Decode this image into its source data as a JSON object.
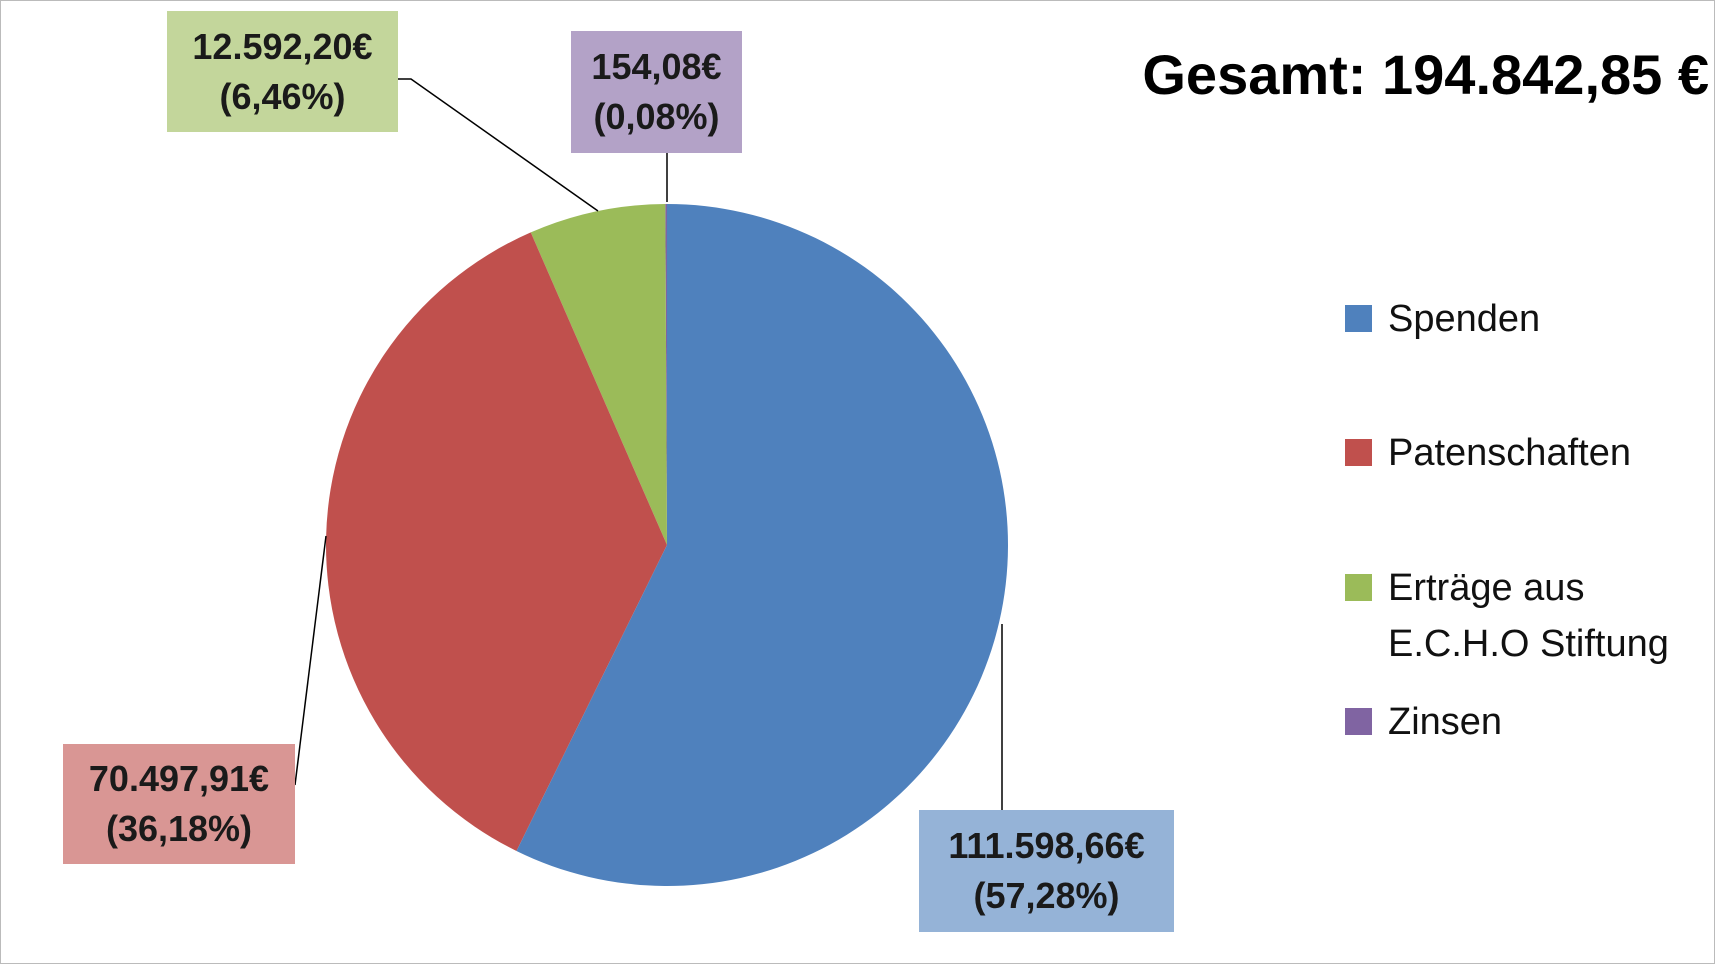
{
  "chart_data": {
    "type": "pie",
    "title": "Gesamt: 194.842,85 €",
    "categories": [
      "Spenden",
      "Patenschaften",
      "Erträge aus E.C.H.O Stiftung",
      "Zinsen"
    ],
    "values": [
      111598.66,
      70497.91,
      12592.2,
      154.08
    ],
    "value_labels": [
      "111.598,66€\n(57,28%)",
      "70.497,91€\n(36,18%)",
      "12.592,20€\n(6,46%)",
      "154,08€\n(0,08%)"
    ],
    "colors": [
      "#4f81bd",
      "#c0504d",
      "#9bbb59",
      "#8064a2"
    ],
    "legend": "right"
  }
}
